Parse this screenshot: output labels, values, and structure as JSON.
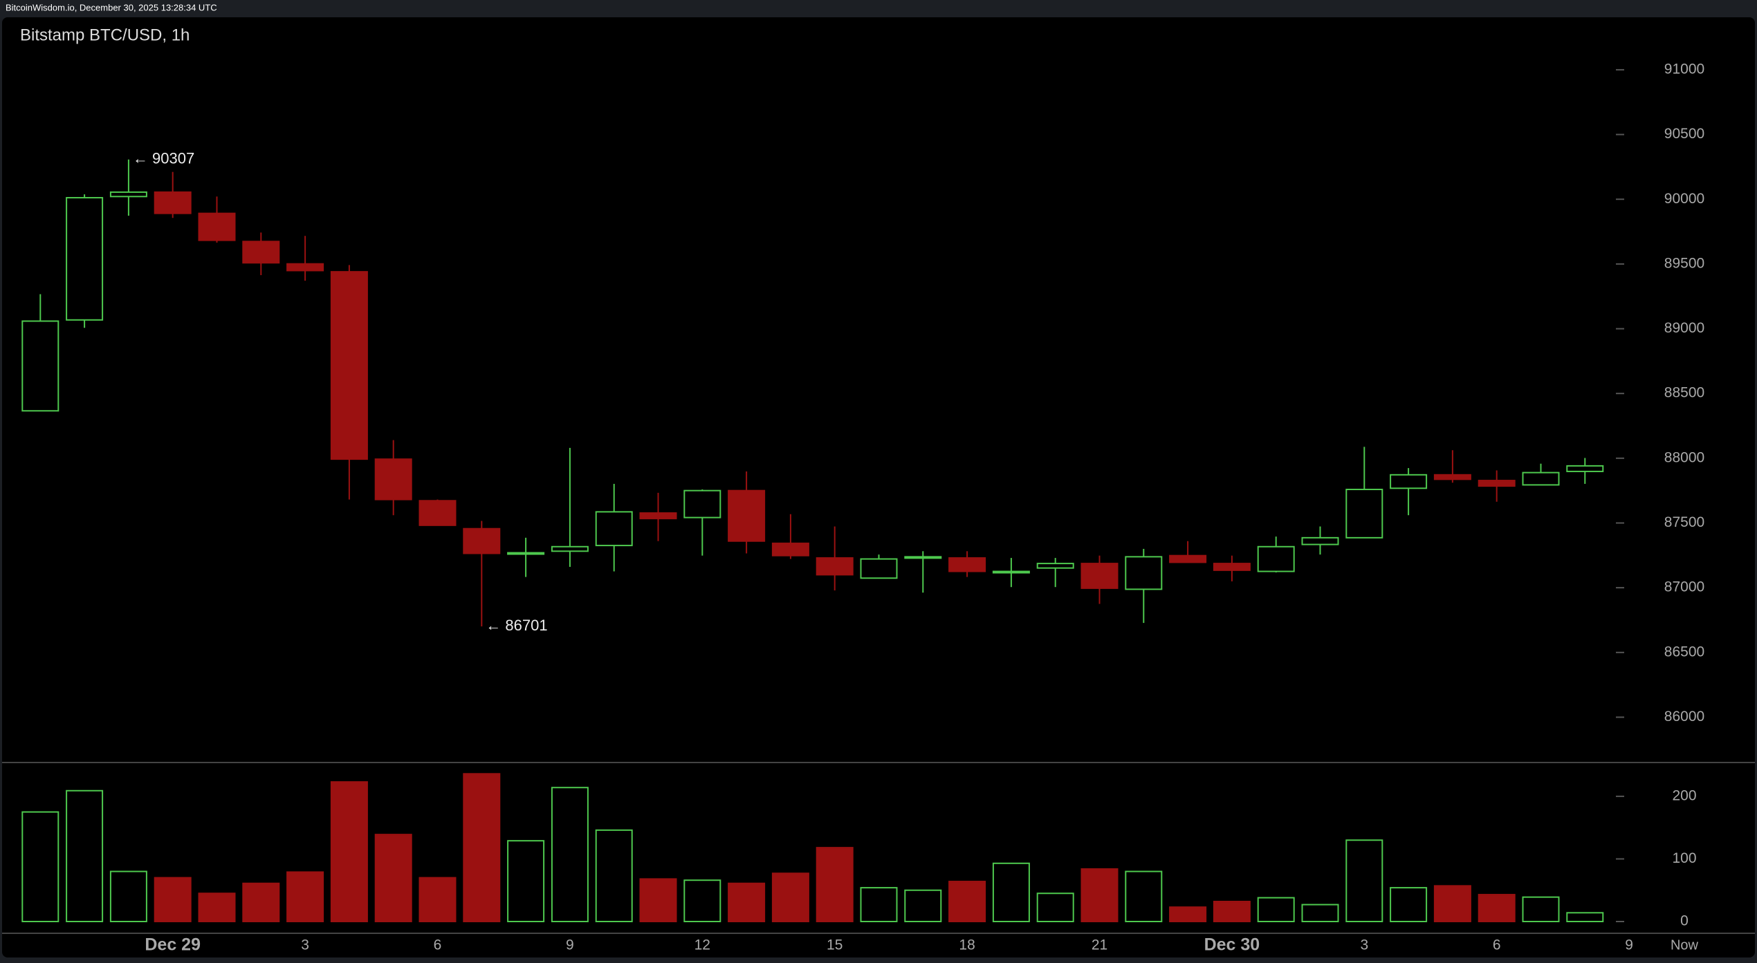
{
  "header": "BitcoinWisdom.io, December 30, 2025 13:28:34 UTC",
  "chart_data": {
    "type": "candlestick",
    "title": "Bitstamp BTC/USD, 1h",
    "categories": [
      null,
      null,
      null,
      "Dec 29",
      null,
      null,
      "3",
      null,
      null,
      "6",
      null,
      null,
      "9",
      null,
      null,
      "12",
      null,
      null,
      "15",
      null,
      null,
      "18",
      null,
      null,
      "21",
      null,
      null,
      "Dec 30",
      null,
      null,
      "3",
      null,
      null,
      "6",
      null,
      null,
      "9"
    ],
    "now_label": "Now",
    "open": [
      88366,
      89068,
      90021,
      90055,
      89891,
      89674,
      89501,
      89440,
      87993,
      87672,
      87456,
      87262,
      87282,
      87326,
      87577,
      87542,
      87750,
      87343,
      87230,
      87074,
      87230,
      87230,
      87118,
      87152,
      87187,
      86988,
      87248,
      87187,
      87126,
      87334,
      87386,
      87768,
      87872,
      87828,
      87794,
      87898,
      null
    ],
    "high": [
      89267,
      90038,
      90307,
      90211,
      90021,
      89743,
      89717,
      89492,
      88140,
      87681,
      87516,
      87386,
      88080,
      87802,
      87733,
      87759,
      87898,
      87568,
      87473,
      87256,
      87282,
      87282,
      87230,
      87230,
      87248,
      87300,
      87360,
      87248,
      87395,
      87473,
      88088,
      87924,
      88062,
      87906,
      87958,
      88002,
      null
    ],
    "low": [
      88366,
      89007,
      89873,
      89856,
      89665,
      89414,
      89371,
      87681,
      87560,
      87482,
      86701,
      87083,
      87161,
      87126,
      87360,
      87248,
      87265,
      87222,
      86979,
      87074,
      86962,
      87083,
      87005,
      87005,
      86875,
      86728,
      87196,
      87049,
      87118,
      87256,
      87386,
      87560,
      87811,
      87664,
      87794,
      87802,
      null
    ],
    "close": [
      89059,
      90012,
      90055,
      89891,
      89683,
      89509,
      89449,
      87993,
      87681,
      87482,
      87265,
      87270,
      87317,
      87586,
      87534,
      87750,
      87360,
      87248,
      87100,
      87222,
      87239,
      87126,
      87126,
      87187,
      86996,
      87239,
      87196,
      87135,
      87317,
      87386,
      87759,
      87872,
      87837,
      87785,
      87889,
      87941,
      null
    ],
    "volume": [
      175,
      209,
      80,
      70,
      45,
      61,
      79,
      223,
      139,
      70,
      236,
      129,
      214,
      146,
      68,
      66,
      61,
      77,
      118,
      54,
      50,
      64,
      93,
      45,
      84,
      80,
      23,
      32,
      38,
      27,
      130,
      54,
      57,
      43,
      39,
      14,
      null
    ],
    "high_label": "← 90307",
    "low_label": "← 86701",
    "up_color": "#4ec94e",
    "down_color": "#9b1111",
    "ylim": [
      85650,
      91400
    ],
    "yticks": [
      86000,
      86500,
      87000,
      87500,
      88000,
      88500,
      89000,
      89500,
      90000,
      90500,
      91000
    ],
    "volume_ylim": [
      0,
      254
    ],
    "volume_yticks": [
      0,
      100,
      200
    ]
  }
}
